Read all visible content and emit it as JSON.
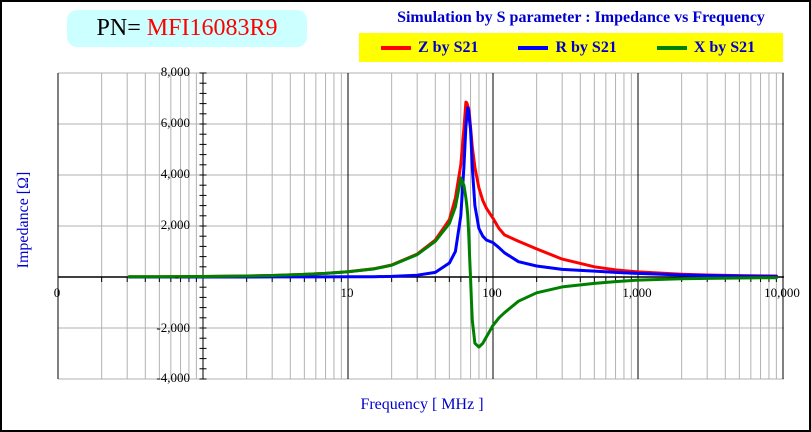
{
  "pn_box": {
    "prefix": "PN= ",
    "value": "MFI16083R9",
    "bg": "#CCFFFF",
    "prefix_color": "#000000",
    "value_color": "#FF0000"
  },
  "chart_data": {
    "type": "line",
    "title": "Simulation by S parameter : Impedance vs Frequency",
    "title_color": "#0000CC",
    "legend": {
      "position": "top",
      "bg": "#FFFF00",
      "text_color": "#0000CC"
    },
    "x_axis": {
      "label": "Frequency [ MHz ]",
      "scale": "log",
      "range_mhz": [
        0.1,
        10000
      ],
      "tick_labels": [
        "0",
        "10",
        "100",
        "1,000",
        "10,000"
      ],
      "tick_values_mhz": [
        0.1,
        10,
        100,
        1000,
        10000
      ]
    },
    "y_axis": {
      "label": "Impedance [Ω]",
      "range": [
        -4000,
        8000
      ],
      "tick_step": 2000,
      "tick_labels": [
        "8,000",
        "6,000",
        "4,000",
        "2,000",
        "-",
        "-2,000",
        "-4,000"
      ],
      "tick_values": [
        8000,
        6000,
        4000,
        2000,
        0,
        -2000,
        -4000
      ]
    },
    "grid": {
      "minor_color": "#B2B2B2",
      "major_color": "#000000",
      "grid_on": true
    },
    "frequencies_mhz": [
      0.31,
      0.5,
      1,
      2,
      3,
      5,
      7,
      10,
      15,
      20,
      30,
      40,
      50,
      55,
      60,
      63,
      65,
      66,
      67,
      68,
      69,
      70,
      71,
      72,
      75,
      80,
      85,
      90,
      100,
      110,
      120,
      150,
      200,
      300,
      500,
      700,
      1000,
      2000,
      3000,
      5000,
      7000,
      9000
    ],
    "series": [
      {
        "name": "Z by S21",
        "color": "#FF0000",
        "values": [
          6,
          10,
          20,
          40,
          60,
          100,
          140,
          205,
          320,
          470,
          900,
          1450,
          2250,
          3100,
          4400,
          5800,
          6860,
          6830,
          6700,
          6600,
          6300,
          5900,
          5500,
          5100,
          4300,
          3500,
          3000,
          2700,
          2300,
          1900,
          1650,
          1400,
          1100,
          700,
          400,
          280,
          200,
          110,
          80,
          55,
          45,
          40
        ]
      },
      {
        "name": "R by S21",
        "color": "#0000FF",
        "values": [
          0,
          0,
          1,
          1,
          2,
          3,
          4,
          6,
          12,
          25,
          70,
          180,
          550,
          1000,
          2400,
          4300,
          5900,
          6300,
          6640,
          6500,
          6100,
          5800,
          5100,
          4300,
          2800,
          1900,
          1600,
          1450,
          1350,
          1150,
          950,
          600,
          430,
          300,
          230,
          180,
          140,
          80,
          60,
          40,
          30,
          25
        ]
      },
      {
        "name": "X by S21",
        "color": "#008000",
        "values": [
          6,
          10,
          20,
          40,
          60,
          100,
          140,
          205,
          315,
          460,
          880,
          1400,
          2100,
          2750,
          3880,
          3600,
          3100,
          2800,
          2400,
          1700,
          800,
          0,
          -900,
          -1700,
          -2600,
          -2745,
          -2600,
          -2350,
          -1900,
          -1600,
          -1400,
          -950,
          -620,
          -390,
          -250,
          -180,
          -120,
          -70,
          -55,
          -40,
          -32,
          -28
        ]
      }
    ]
  }
}
